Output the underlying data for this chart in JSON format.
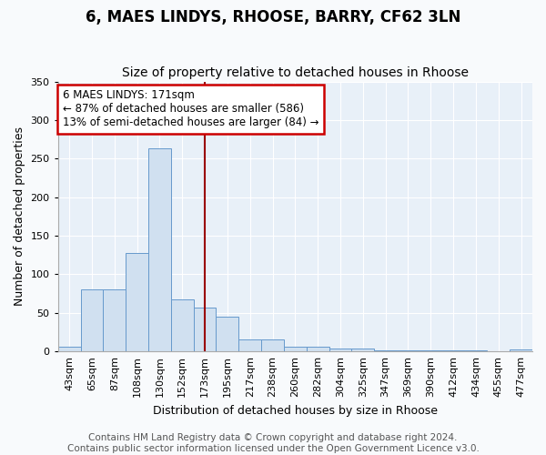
{
  "title1": "6, MAES LINDYS, RHOOSE, BARRY, CF62 3LN",
  "title2": "Size of property relative to detached houses in Rhoose",
  "xlabel": "Distribution of detached houses by size in Rhoose",
  "ylabel": "Number of detached properties",
  "bar_color": "#d0e0f0",
  "bar_edge_color": "#6699cc",
  "background_color": "#e8f0f8",
  "grid_color": "#ffffff",
  "categories": [
    "43sqm",
    "65sqm",
    "87sqm",
    "108sqm",
    "130sqm",
    "152sqm",
    "173sqm",
    "195sqm",
    "217sqm",
    "238sqm",
    "260sqm",
    "282sqm",
    "304sqm",
    "325sqm",
    "347sqm",
    "369sqm",
    "390sqm",
    "412sqm",
    "434sqm",
    "455sqm",
    "477sqm"
  ],
  "values": [
    6,
    81,
    81,
    128,
    263,
    67,
    57,
    45,
    15,
    15,
    6,
    6,
    4,
    4,
    1,
    1,
    1,
    1,
    1,
    0,
    2
  ],
  "ylim": [
    0,
    350
  ],
  "yticks": [
    0,
    50,
    100,
    150,
    200,
    250,
    300,
    350
  ],
  "property_line_idx": 6,
  "vline_color": "#990000",
  "annotation_text": "6 MAES LINDYS: 171sqm\n← 87% of detached houses are smaller (586)\n13% of semi-detached houses are larger (84) →",
  "annotation_box_color": "#ffffff",
  "annotation_box_edge": "#cc0000",
  "footer": "Contains HM Land Registry data © Crown copyright and database right 2024.\nContains public sector information licensed under the Open Government Licence v3.0.",
  "title_fontsize": 12,
  "subtitle_fontsize": 10,
  "axis_label_fontsize": 9,
  "tick_fontsize": 8,
  "footer_fontsize": 7.5,
  "fig_bg": "#f8fafc"
}
